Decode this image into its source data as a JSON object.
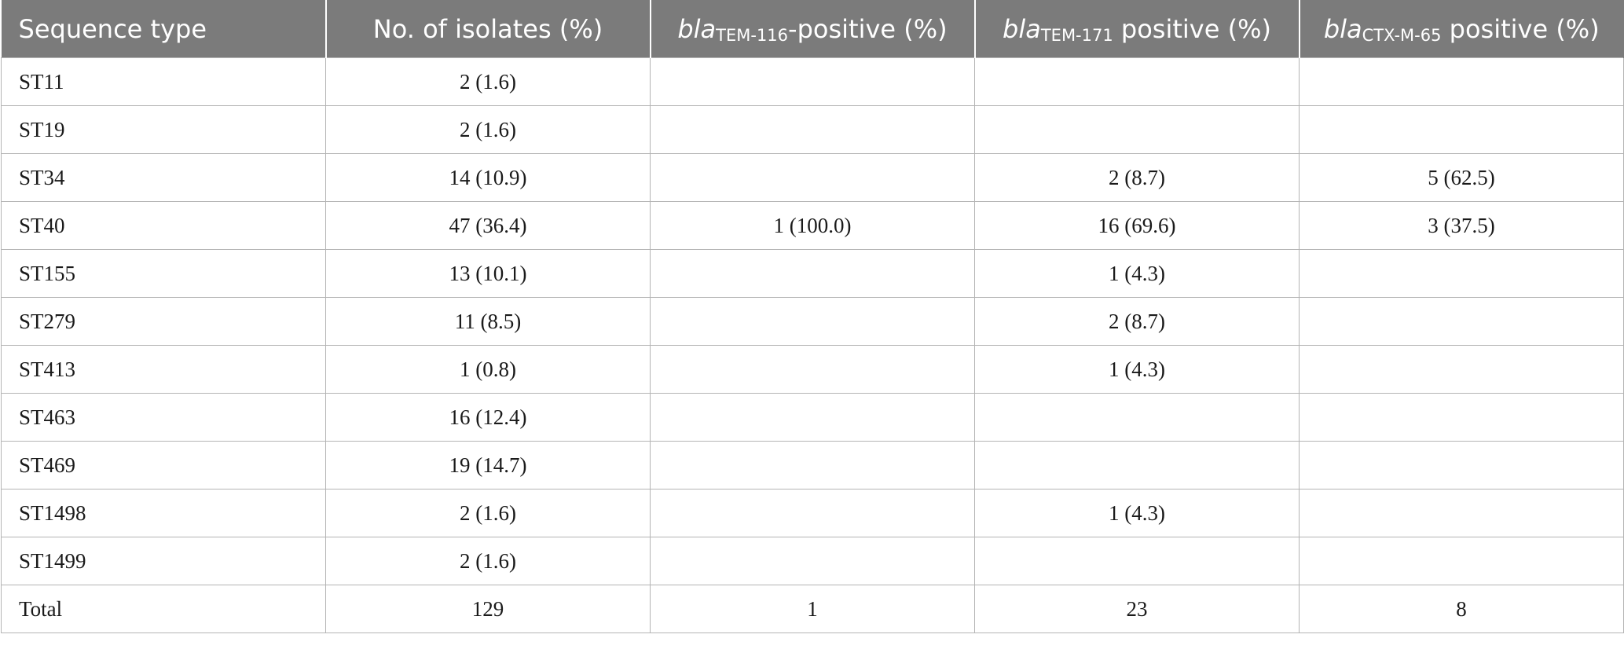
{
  "table": {
    "headers": [
      {
        "pre": "Sequence type",
        "gene": "",
        "sub": "",
        "post": ""
      },
      {
        "pre": "No. of isolates (%)",
        "gene": "",
        "sub": "",
        "post": ""
      },
      {
        "pre": "",
        "gene": "bla",
        "sub": "TEM-116",
        "post": "-positive (%)"
      },
      {
        "pre": "",
        "gene": "bla",
        "sub": "TEM-171",
        "post": " positive (%)"
      },
      {
        "pre": "",
        "gene": "bla",
        "sub": "CTX-M-65",
        "post": " positive (%)"
      }
    ],
    "rows": [
      [
        "ST11",
        "2 (1.6)",
        "",
        "",
        ""
      ],
      [
        "ST19",
        "2 (1.6)",
        "",
        "",
        ""
      ],
      [
        "ST34",
        "14 (10.9)",
        "",
        "2 (8.7)",
        "5 (62.5)"
      ],
      [
        "ST40",
        "47 (36.4)",
        "1 (100.0)",
        "16 (69.6)",
        "3 (37.5)"
      ],
      [
        "ST155",
        "13 (10.1)",
        "",
        "1 (4.3)",
        ""
      ],
      [
        "ST279",
        "11 (8.5)",
        "",
        "2 (8.7)",
        ""
      ],
      [
        "ST413",
        "1 (0.8)",
        "",
        "1 (4.3)",
        ""
      ],
      [
        "ST463",
        "16 (12.4)",
        "",
        "",
        ""
      ],
      [
        "ST469",
        "19 (14.7)",
        "",
        "",
        ""
      ],
      [
        "ST1498",
        "2 (1.6)",
        "",
        "1 (4.3)",
        ""
      ],
      [
        "ST1499",
        "2 (1.6)",
        "",
        "",
        ""
      ],
      [
        "Total",
        "129",
        "1",
        "23",
        "8"
      ]
    ]
  }
}
